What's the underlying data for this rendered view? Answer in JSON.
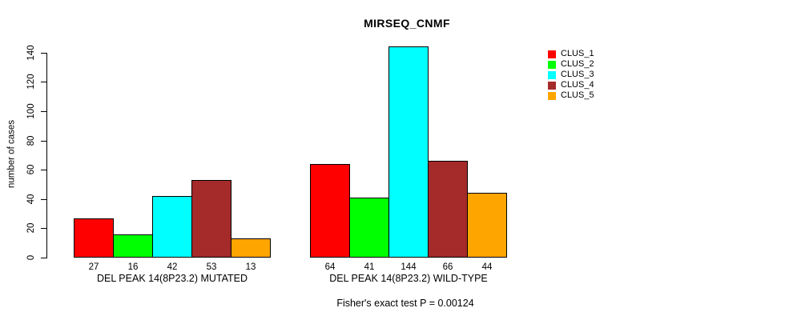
{
  "chart_data": {
    "type": "bar",
    "title": "MIRSEQ_CNMF",
    "ylabel": "number of cases",
    "ylim": [
      0,
      140
    ],
    "yticks": [
      0,
      20,
      40,
      60,
      80,
      100,
      120,
      140
    ],
    "grid": false,
    "legend_position": "top-right",
    "bar_value_labels": true,
    "categories": [
      "DEL PEAK 14(8P23.2) MUTATED",
      "DEL PEAK 14(8P23.2) WILD-TYPE"
    ],
    "series": [
      {
        "name": "CLUS_1",
        "color": "#FF0000",
        "values": [
          27,
          64
        ]
      },
      {
        "name": "CLUS_2",
        "color": "#00FF00",
        "values": [
          16,
          41
        ]
      },
      {
        "name": "CLUS_3",
        "color": "#00FFFF",
        "values": [
          42,
          144
        ]
      },
      {
        "name": "CLUS_4",
        "color": "#A52A2A",
        "values": [
          53,
          66
        ]
      },
      {
        "name": "CLUS_5",
        "color": "#FFA500",
        "values": [
          13,
          44
        ]
      }
    ],
    "caption": "Fisher's exact test P = 0.00124"
  }
}
